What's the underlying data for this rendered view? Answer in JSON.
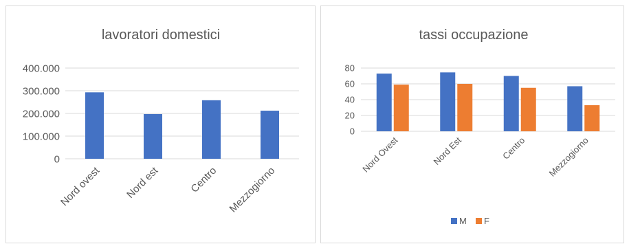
{
  "chart_data": [
    {
      "type": "bar",
      "title": "lavoratori domestici",
      "xlabel": "",
      "ylabel": "",
      "categories": [
        "Nord ovest",
        "Nord est",
        "Centro",
        "Mezzogiorno"
      ],
      "values": [
        293000,
        197000,
        258000,
        212000
      ],
      "ylim": [
        0,
        400000
      ],
      "yticks": [
        0,
        100000,
        200000,
        300000,
        400000
      ],
      "ytick_labels": [
        "0",
        "100.000",
        "200.000",
        "300.000",
        "400.000"
      ],
      "grid": true,
      "legend": "none",
      "colors": [
        "#4472c4"
      ]
    },
    {
      "type": "bar",
      "title": "tassi occupazione",
      "xlabel": "",
      "ylabel": "",
      "categories": [
        "Nord Ovest",
        "Nord Est",
        "Centro",
        "Mezzogiorno"
      ],
      "series": [
        {
          "name": "M",
          "values": [
            73,
            74.5,
            70,
            57
          ],
          "color": "#4472c4"
        },
        {
          "name": "F",
          "values": [
            59,
            60,
            55,
            33
          ],
          "color": "#ed7d31"
        }
      ],
      "ylim": [
        0,
        80
      ],
      "yticks": [
        0,
        20,
        40,
        60,
        80
      ],
      "ytick_labels": [
        "0",
        "20",
        "40",
        "60",
        "80"
      ],
      "grid": true,
      "legend": "bottom"
    }
  ]
}
